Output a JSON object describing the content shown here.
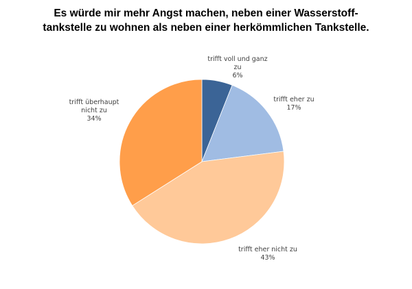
{
  "chart_data": {
    "type": "pie",
    "title_lines": [
      "Es würde mir mehr Angst machen, neben einer Wasserstoff-",
      "tankstelle zu wohnen als neben einer herkömmlichen Tankstelle."
    ],
    "slices": [
      {
        "label_lines": [
          "trifft voll und ganz",
          "zu"
        ],
        "value": 6,
        "value_label": "6%",
        "color": "#3B6496"
      },
      {
        "label_lines": [
          "trifft eher zu"
        ],
        "value": 17,
        "value_label": "17%",
        "color": "#A0BCE3"
      },
      {
        "label_lines": [
          "trifft eher nicht zu"
        ],
        "value": 43,
        "value_label": "43%",
        "color": "#FFC999"
      },
      {
        "label_lines": [
          "trifft überhaupt",
          "nicht zu"
        ],
        "value": 34,
        "value_label": "34%",
        "color": "#FF9E4A"
      }
    ],
    "start_angle_deg": 0,
    "direction": "clockwise",
    "legend": "none"
  }
}
